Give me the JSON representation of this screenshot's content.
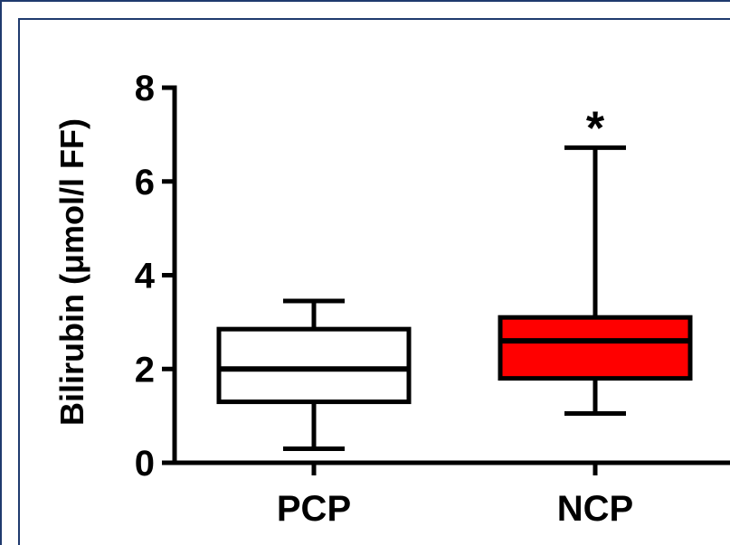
{
  "chart_data": {
    "type": "box",
    "title": "",
    "xlabel": "",
    "ylabel": "Bilirubin (μmol/l FF)",
    "ylim": [
      0,
      8
    ],
    "yticks": [
      "0",
      "2",
      "4",
      "6",
      "8"
    ],
    "grid": false,
    "categories": [
      "PCP",
      "NCP"
    ],
    "boxes": [
      {
        "category": "PCP",
        "min": 0.3,
        "q1": 1.3,
        "median": 2.0,
        "q3": 2.85,
        "max": 3.45,
        "fill": "#ffffff",
        "annotation": ""
      },
      {
        "category": "NCP",
        "min": 1.05,
        "q1": 1.8,
        "median": 2.6,
        "q3": 3.1,
        "max": 6.72,
        "fill": "#ff0000",
        "annotation": "*"
      }
    ]
  },
  "colors": {
    "frame": "#1f3a6e",
    "axis": "#000000"
  }
}
